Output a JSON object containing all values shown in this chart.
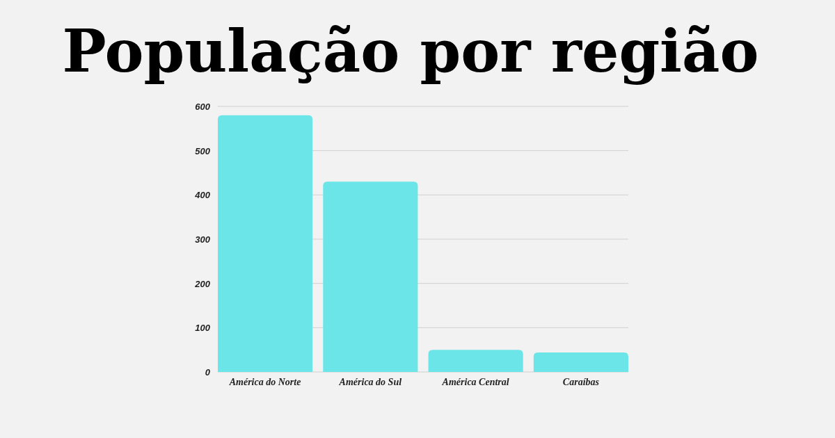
{
  "chart_data": {
    "type": "bar",
    "title": "População por região",
    "categories": [
      "América do Norte",
      "América do Sul",
      "América Central",
      "Caraíbas"
    ],
    "values": [
      580,
      430,
      50,
      44
    ],
    "color": "#6ce5e8",
    "ylim": [
      0,
      600
    ],
    "yticks": [
      0,
      100,
      200,
      300,
      400,
      500,
      600
    ],
    "grid": "y"
  }
}
